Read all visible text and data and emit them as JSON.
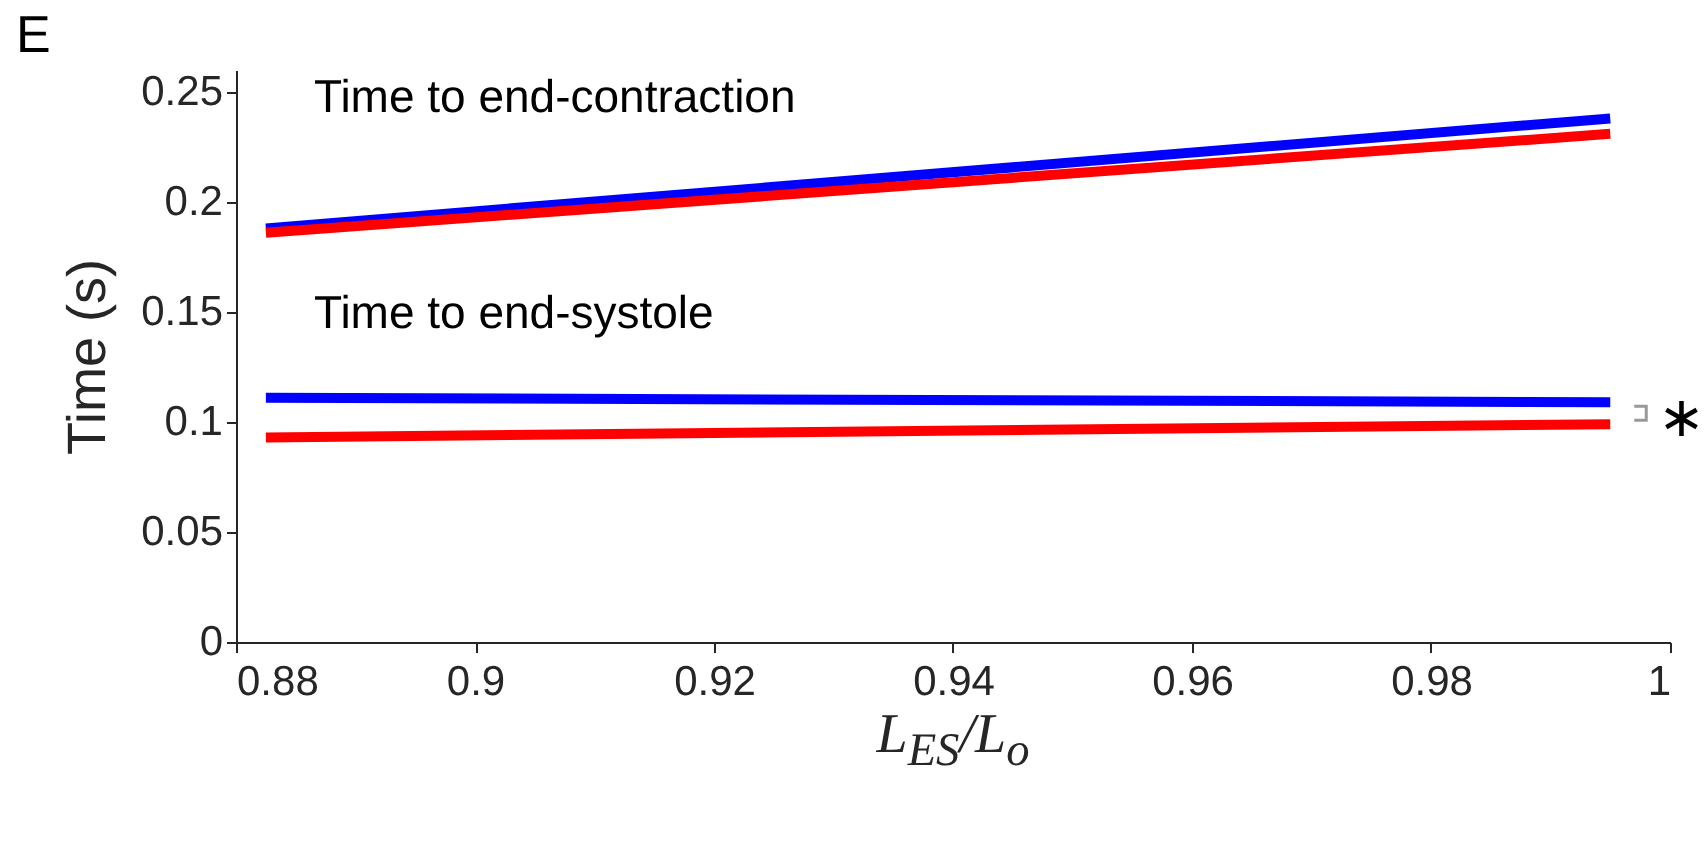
{
  "chart_data": {
    "type": "line",
    "xlabel": "L$_{ES}$/L$_{o}$",
    "ylabel": "Time (s)",
    "xlim": [
      0.88,
      1
    ],
    "xticks": [
      0.88,
      0.9,
      0.92,
      0.94,
      0.96,
      0.98,
      1
    ],
    "ylim": [
      0,
      0.26
    ],
    "yticks": [
      0,
      0.05,
      0.1,
      0.15,
      0.2,
      0.25
    ],
    "grid": false,
    "legend": false,
    "line_style": "solid",
    "marker": "none",
    "x": [
      0.8825,
      0.995
    ],
    "series": [
      {
        "color": "#0000ff",
        "values": [
          0.188,
          0.238
        ]
      },
      {
        "color": "#ff0000",
        "values": [
          0.186,
          0.231
        ]
      },
      {
        "color": "#0000ff",
        "values": [
          0.111,
          0.109
        ]
      },
      {
        "color": "#ff0000",
        "values": [
          0.093,
          0.099
        ]
      }
    ],
    "annotations": [
      "E",
      "Time to end-contraction",
      "Time to end-systole",
      "∗"
    ]
  }
}
